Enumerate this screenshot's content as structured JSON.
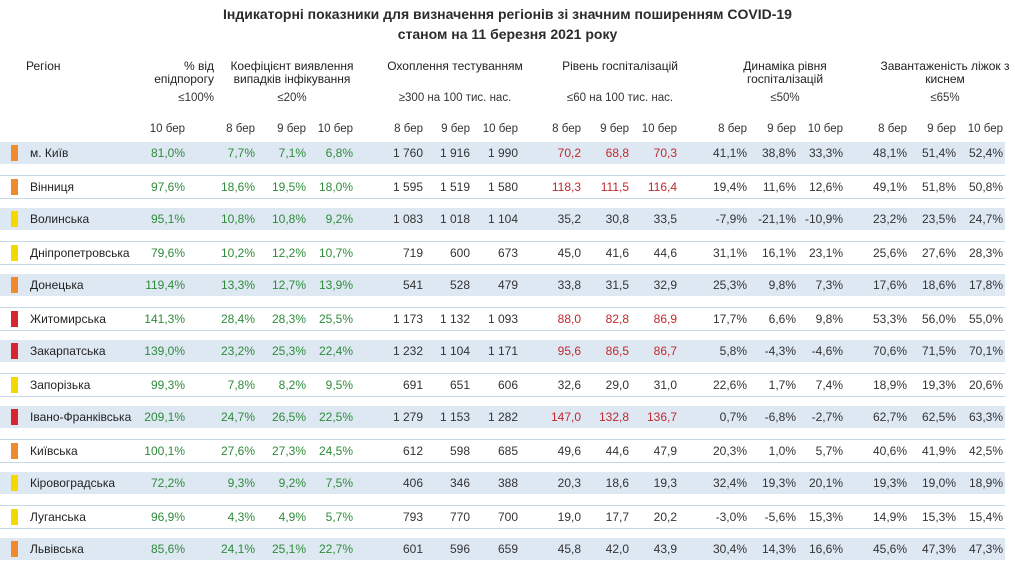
{
  "title": {
    "line1": "Індикаторні показники для визначення регіонів зі значним поширенням COVID-19",
    "line2": "станом на 11 березня 2021 року"
  },
  "headers": {
    "region": "Регіон",
    "pct_threshold": "% від епідпорогу",
    "detection": "Коефіцієнт виявлення випадків інфікування",
    "testing": "Охоплення тестуванням",
    "hospital": "Рівень госпіталізацій",
    "dynamics": "Динаміка рівня госпіталізацій",
    "oxygen": "Завантаженість ліжок з киснем"
  },
  "thresholds": {
    "pct_threshold": "≤100%",
    "detection": "≤20%",
    "testing": "≥300 на 100 тис. нас.",
    "hospital": "≤60 на 100 тис. нас.",
    "dynamics": "≤50%",
    "oxygen": "≤65%"
  },
  "dates": {
    "d10": "10 бер",
    "d8": "8 бер",
    "d9": "9 бер"
  },
  "colors": {
    "orange": "#f08a2e",
    "yellow": "#f5d800",
    "red": "#d7262f",
    "green_text": "#2e8b3a",
    "red_text": "#c0282e",
    "row_shade": "#dde8f3"
  },
  "rows": [
    {
      "region": "м. Київ",
      "zone": "orange",
      "pct": "81,0%",
      "det": [
        "7,7%",
        "7,1%",
        "6,8%"
      ],
      "test": [
        "1 760",
        "1 916",
        "1 990"
      ],
      "hosp": [
        "70,2",
        "68,8",
        "70,3"
      ],
      "hosp_red": [
        true,
        true,
        true
      ],
      "dyn": [
        "41,1%",
        "38,8%",
        "33,3%"
      ],
      "oxy": [
        "48,1%",
        "51,4%",
        "52,4%"
      ]
    },
    {
      "region": "Вінниця",
      "zone": "orange",
      "pct": "97,6%",
      "det": [
        "18,6%",
        "19,5%",
        "18,0%"
      ],
      "test": [
        "1 595",
        "1 519",
        "1 580"
      ],
      "hosp": [
        "118,3",
        "111,5",
        "116,4"
      ],
      "hosp_red": [
        true,
        true,
        true
      ],
      "dyn": [
        "19,4%",
        "11,6%",
        "12,6%"
      ],
      "oxy": [
        "49,1%",
        "51,8%",
        "50,8%"
      ]
    },
    {
      "region": "Волинська",
      "zone": "yellow",
      "pct": "95,1%",
      "det": [
        "10,8%",
        "10,8%",
        "9,2%"
      ],
      "test": [
        "1 083",
        "1 018",
        "1 104"
      ],
      "hosp": [
        "35,2",
        "30,8",
        "33,5"
      ],
      "hosp_red": [
        false,
        false,
        false
      ],
      "dyn": [
        "-7,9%",
        "-21,1%",
        "-10,9%"
      ],
      "oxy": [
        "23,2%",
        "23,5%",
        "24,7%"
      ]
    },
    {
      "region": "Дніпропетровська",
      "zone": "yellow",
      "pct": "79,6%",
      "det": [
        "10,2%",
        "12,2%",
        "10,7%"
      ],
      "test": [
        "719",
        "600",
        "673"
      ],
      "hosp": [
        "45,0",
        "41,6",
        "44,6"
      ],
      "hosp_red": [
        false,
        false,
        false
      ],
      "dyn": [
        "31,1%",
        "16,1%",
        "23,1%"
      ],
      "oxy": [
        "25,6%",
        "27,6%",
        "28,3%"
      ]
    },
    {
      "region": "Донецька",
      "zone": "orange",
      "pct": "119,4%",
      "det": [
        "13,3%",
        "12,7%",
        "13,9%"
      ],
      "test": [
        "541",
        "528",
        "479"
      ],
      "hosp": [
        "33,8",
        "31,5",
        "32,9"
      ],
      "hosp_red": [
        false,
        false,
        false
      ],
      "dyn": [
        "25,3%",
        "9,8%",
        "7,3%"
      ],
      "oxy": [
        "17,6%",
        "18,6%",
        "17,8%"
      ]
    },
    {
      "region": "Житомирська",
      "zone": "red",
      "pct": "141,3%",
      "det": [
        "28,4%",
        "28,3%",
        "25,5%"
      ],
      "test": [
        "1 173",
        "1 132",
        "1 093"
      ],
      "hosp": [
        "88,0",
        "82,8",
        "86,9"
      ],
      "hosp_red": [
        true,
        true,
        true
      ],
      "dyn": [
        "17,7%",
        "6,6%",
        "9,8%"
      ],
      "oxy": [
        "53,3%",
        "56,0%",
        "55,0%"
      ]
    },
    {
      "region": "Закарпатська",
      "zone": "red",
      "pct": "139,0%",
      "det": [
        "23,2%",
        "25,3%",
        "22,4%"
      ],
      "test": [
        "1 232",
        "1 104",
        "1 171"
      ],
      "hosp": [
        "95,6",
        "86,5",
        "86,7"
      ],
      "hosp_red": [
        true,
        true,
        true
      ],
      "dyn": [
        "5,8%",
        "-4,3%",
        "-4,6%"
      ],
      "oxy": [
        "70,6%",
        "71,5%",
        "70,1%"
      ]
    },
    {
      "region": "Запорізька",
      "zone": "yellow",
      "pct": "99,3%",
      "det": [
        "7,8%",
        "8,2%",
        "9,5%"
      ],
      "test": [
        "691",
        "651",
        "606"
      ],
      "hosp": [
        "32,6",
        "29,0",
        "31,0"
      ],
      "hosp_red": [
        false,
        false,
        false
      ],
      "dyn": [
        "22,6%",
        "1,7%",
        "7,4%"
      ],
      "oxy": [
        "18,9%",
        "19,3%",
        "20,6%"
      ]
    },
    {
      "region": "Івано-Франківська",
      "zone": "red",
      "pct": "209,1%",
      "det": [
        "24,7%",
        "26,5%",
        "22,5%"
      ],
      "test": [
        "1 279",
        "1 153",
        "1 282"
      ],
      "hosp": [
        "147,0",
        "132,8",
        "136,7"
      ],
      "hosp_red": [
        true,
        true,
        true
      ],
      "dyn": [
        "0,7%",
        "-6,8%",
        "-2,7%"
      ],
      "oxy": [
        "62,7%",
        "62,5%",
        "63,3%"
      ]
    },
    {
      "region": "Київська",
      "zone": "orange",
      "pct": "100,1%",
      "det": [
        "27,6%",
        "27,3%",
        "24,5%"
      ],
      "test": [
        "612",
        "598",
        "685"
      ],
      "hosp": [
        "49,6",
        "44,6",
        "47,9"
      ],
      "hosp_red": [
        false,
        false,
        false
      ],
      "dyn": [
        "20,3%",
        "1,0%",
        "5,7%"
      ],
      "oxy": [
        "40,6%",
        "41,9%",
        "42,5%"
      ]
    },
    {
      "region": "Кіровоградська",
      "zone": "yellow",
      "pct": "72,2%",
      "det": [
        "9,3%",
        "9,2%",
        "7,5%"
      ],
      "test": [
        "406",
        "346",
        "388"
      ],
      "hosp": [
        "20,3",
        "18,6",
        "19,3"
      ],
      "hosp_red": [
        false,
        false,
        false
      ],
      "dyn": [
        "32,4%",
        "19,3%",
        "20,1%"
      ],
      "oxy": [
        "19,3%",
        "19,0%",
        "18,9%"
      ]
    },
    {
      "region": "Луганська",
      "zone": "yellow",
      "pct": "96,9%",
      "det": [
        "4,3%",
        "4,9%",
        "5,7%"
      ],
      "test": [
        "793",
        "770",
        "700"
      ],
      "hosp": [
        "19,0",
        "17,7",
        "20,2"
      ],
      "hosp_red": [
        false,
        false,
        false
      ],
      "dyn": [
        "-3,0%",
        "-5,6%",
        "15,3%"
      ],
      "oxy": [
        "14,9%",
        "15,3%",
        "15,4%"
      ]
    },
    {
      "region": "Львівська",
      "zone": "orange",
      "pct": "85,6%",
      "det": [
        "24,1%",
        "25,1%",
        "22,7%"
      ],
      "test": [
        "601",
        "596",
        "659"
      ],
      "hosp": [
        "45,8",
        "42,0",
        "43,9"
      ],
      "hosp_red": [
        false,
        false,
        false
      ],
      "dyn": [
        "30,4%",
        "14,3%",
        "16,6%"
      ],
      "oxy": [
        "45,6%",
        "47,3%",
        "47,3%"
      ]
    }
  ]
}
